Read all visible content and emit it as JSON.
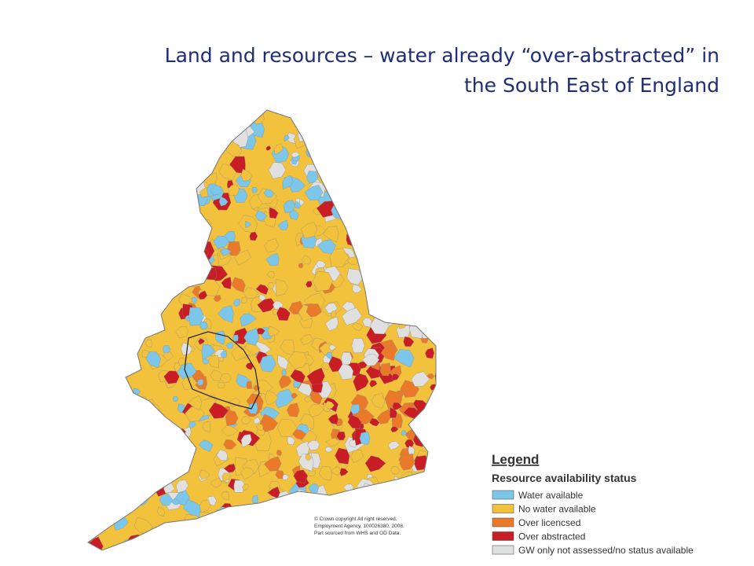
{
  "title": {
    "lines": [
      "Land and resources – water already “over-abstracted” in",
      "the South East of England"
    ]
  },
  "copyright": [
    "© Crown copyright All right reserved.",
    "Employment Agency, 100026380, 2008.",
    "Part sourced from WHS and OD Data."
  ],
  "legend": {
    "heading": "Legend",
    "title": "Resource availability status",
    "items": [
      {
        "label": "Water available",
        "color": "#7cc6ea"
      },
      {
        "label": "No water available",
        "color": "#f2c23c"
      },
      {
        "label": "Over licencsed",
        "color": "#ea7a2a"
      },
      {
        "label": "Over abstracted",
        "color": "#c91d25"
      },
      {
        "label": "GW only not assessed/no status available",
        "color": "#e0e0e0"
      }
    ]
  }
}
